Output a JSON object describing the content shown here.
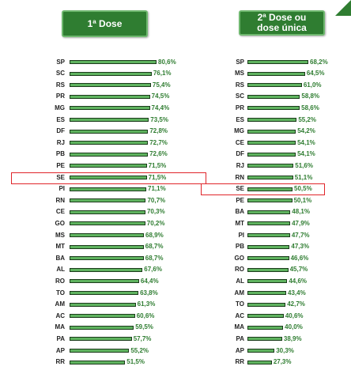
{
  "headers": {
    "left": "1ª Dose",
    "right": "2ª Dose ou dose única"
  },
  "highlight_color": "#e0252a",
  "bar_color": "#5fb35f",
  "chart_data": [
    {
      "type": "bar",
      "orientation": "horizontal",
      "title": "1ª Dose",
      "highlighted_category": "SE",
      "categories": [
        "SP",
        "SC",
        "RS",
        "PR",
        "MG",
        "ES",
        "DF",
        "RJ",
        "PB",
        "PE",
        "SE",
        "PI",
        "RN",
        "CE",
        "GO",
        "MS",
        "MT",
        "BA",
        "AL",
        "RO",
        "TO",
        "AM",
        "AC",
        "MA",
        "PA",
        "AP",
        "RR"
      ],
      "values": [
        80.6,
        76.1,
        75.4,
        74.5,
        74.4,
        73.5,
        72.8,
        72.7,
        72.6,
        71.5,
        71.5,
        71.1,
        70.7,
        70.3,
        70.2,
        68.9,
        68.7,
        68.7,
        67.6,
        64.4,
        63.8,
        61.3,
        60.6,
        59.5,
        57.7,
        55.2,
        51.5
      ],
      "labels": [
        "80,6%",
        "76,1%",
        "75,4%",
        "74,5%",
        "74,4%",
        "73,5%",
        "72,8%",
        "72,7%",
        "72,6%",
        "71,5%",
        "71,5%",
        "71,1%",
        "70,7%",
        "70,3%",
        "70,2%",
        "68,9%",
        "68,7%",
        "68,7%",
        "67,6%",
        "64,4%",
        "63,8%",
        "61,3%",
        "60,6%",
        "59,5%",
        "57,7%",
        "55,2%",
        "51,5%"
      ]
    },
    {
      "type": "bar",
      "orientation": "horizontal",
      "title": "2ª Dose ou dose única",
      "highlighted_category": "SE",
      "categories": [
        "SP",
        "MS",
        "RS",
        "SC",
        "PR",
        "ES",
        "MG",
        "CE",
        "DF",
        "RJ",
        "RN",
        "SE",
        "PE",
        "BA",
        "MT",
        "PI",
        "PB",
        "GO",
        "RO",
        "AL",
        "AM",
        "TO",
        "AC",
        "MA",
        "PA",
        "AP",
        "RR"
      ],
      "values": [
        68.2,
        64.5,
        61.0,
        58.8,
        58.6,
        55.2,
        54.2,
        54.1,
        54.1,
        51.6,
        51.1,
        50.5,
        50.1,
        48.1,
        47.9,
        47.7,
        47.3,
        46.6,
        45.7,
        44.6,
        43.4,
        42.7,
        40.6,
        40.0,
        38.9,
        30.3,
        27.3
      ],
      "labels": [
        "68,2%",
        "64,5%",
        "61,0%",
        "58,8%",
        "58,6%",
        "55,2%",
        "54,2%",
        "54,1%",
        "54,1%",
        "51,6%",
        "51,1%",
        "50,5%",
        "50,1%",
        "48,1%",
        "47,9%",
        "47,7%",
        "47,3%",
        "46,6%",
        "45,7%",
        "44,6%",
        "43,4%",
        "42,7%",
        "40,6%",
        "40,0%",
        "38,9%",
        "30,3%",
        "27,3%"
      ]
    }
  ]
}
